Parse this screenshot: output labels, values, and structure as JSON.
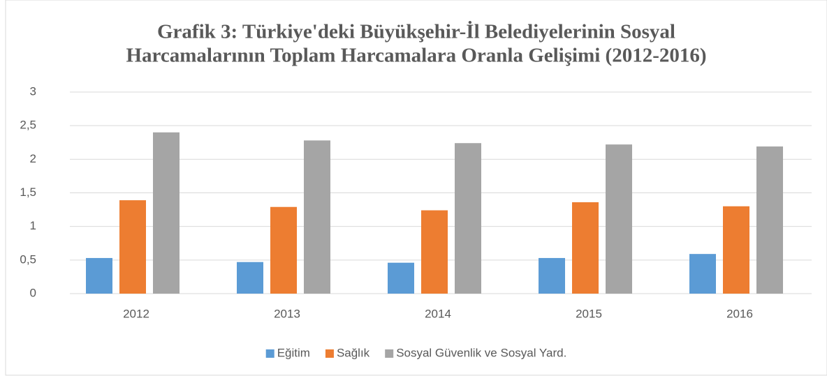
{
  "chart_data": {
    "type": "bar",
    "title": [
      "Grafik 3: Türkiye'deki Büyükşehir-İl Belediyelerinin Sosyal",
      "Harcamalarının Toplam Harcamalara Oranla Gelişimi (2012-2016)"
    ],
    "categories": [
      "2012",
      "2013",
      "2014",
      "2015",
      "2016"
    ],
    "series": [
      {
        "name": "Eğitim",
        "color": "#5b9bd5",
        "values": [
          0.53,
          0.47,
          0.46,
          0.53,
          0.59
        ]
      },
      {
        "name": "Sağlık",
        "color": "#ed7d31",
        "values": [
          1.39,
          1.29,
          1.24,
          1.36,
          1.3
        ]
      },
      {
        "name": "Sosyal Güvenlik ve Sosyal Yard.",
        "color": "#a5a5a5",
        "values": [
          2.4,
          2.28,
          2.24,
          2.22,
          2.19
        ]
      }
    ],
    "ylim": [
      0,
      3
    ],
    "yticks": [
      0,
      {
        "value": 0.5,
        "label": "0,5"
      },
      1,
      {
        "value": 1.5,
        "label": "1,5"
      },
      2,
      {
        "value": 2.5,
        "label": "2,5"
      },
      3
    ],
    "grid": true,
    "legend": "bottom"
  }
}
